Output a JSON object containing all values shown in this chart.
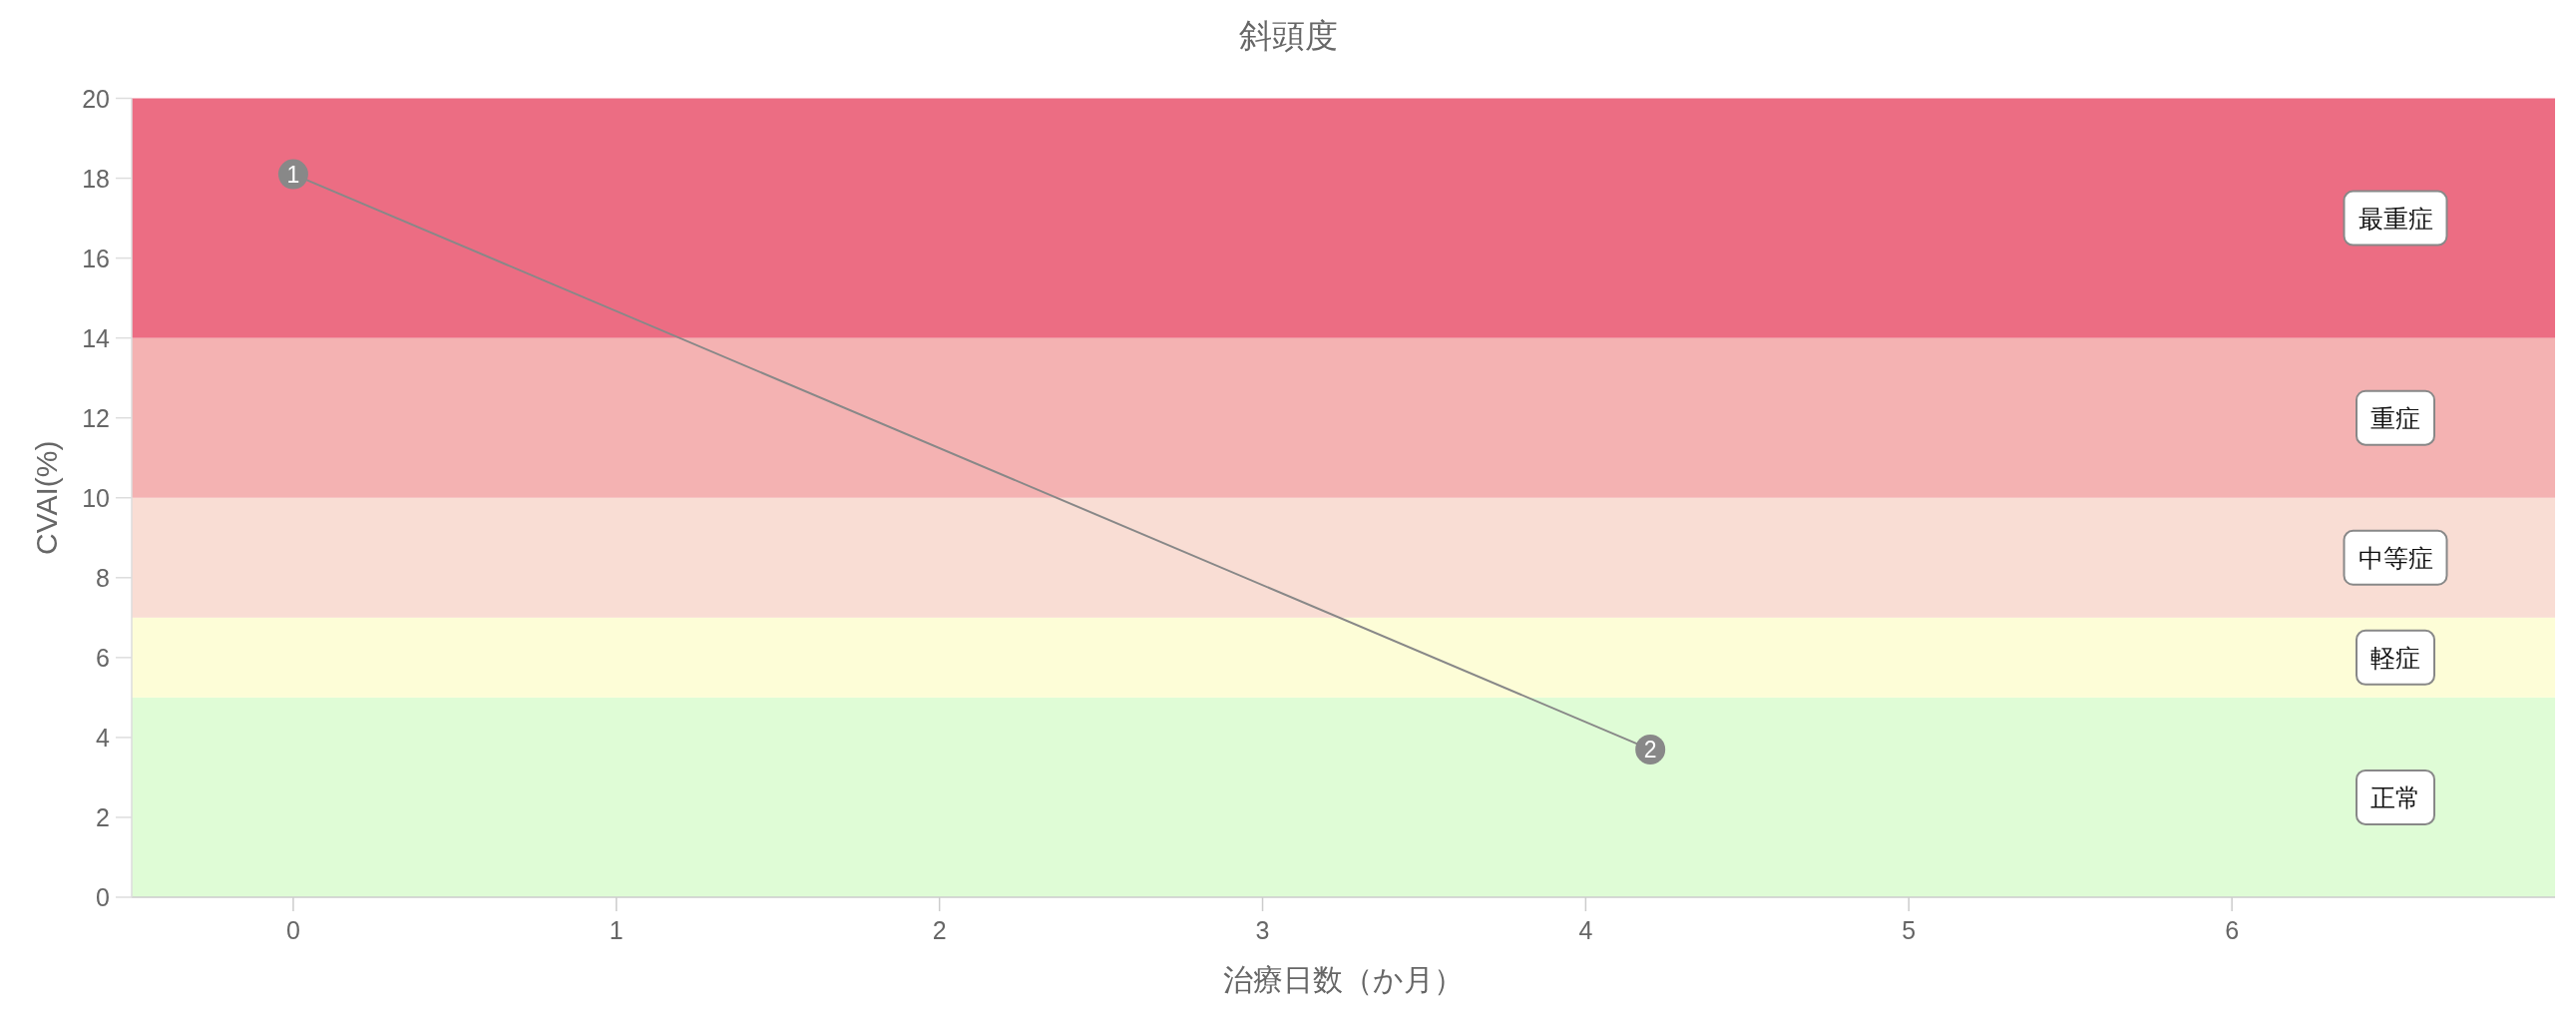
{
  "chart_data": {
    "type": "line",
    "title": "斜頭度",
    "xlabel": "治療日数（か月）",
    "ylabel": "CVAI(%)",
    "x": [
      0,
      4.2
    ],
    "series": [
      {
        "color": "#888888",
        "values": [
          18.1,
          3.7
        ]
      }
    ],
    "marker": "circle",
    "annotations": [
      {
        "text": "1",
        "x": 0,
        "y": 18.1
      },
      {
        "text": "2",
        "x": 4.2,
        "y": 3.7
      }
    ],
    "xlim": [
      -0.5,
      7
    ],
    "xticks": [
      0,
      1,
      2,
      3,
      4,
      5,
      6
    ],
    "ylim": [
      0,
      20
    ],
    "yticks": [
      0,
      2,
      4,
      6,
      8,
      10,
      12,
      14,
      16,
      18,
      20
    ],
    "bands": [
      {
        "axis": "y",
        "from": 0,
        "to": 5,
        "label": "正常",
        "color": "#dffcd6"
      },
      {
        "axis": "y",
        "from": 5,
        "to": 7,
        "label": "軽症",
        "color": "#fdfdd7"
      },
      {
        "axis": "y",
        "from": 7,
        "to": 10,
        "label": "中等症",
        "color": "#f9ddd4"
      },
      {
        "axis": "y",
        "from": 10,
        "to": 14,
        "label": "重症",
        "color": "#f4b2b2"
      },
      {
        "axis": "y",
        "from": 14,
        "to": 20,
        "label": "最重症",
        "color": "#ec6d83"
      }
    ]
  }
}
